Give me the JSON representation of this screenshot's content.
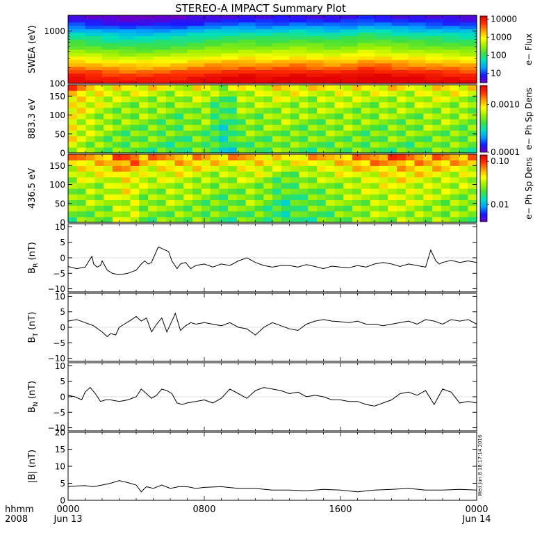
{
  "title": "STEREO-A IMPACT Summary Plot",
  "timestamp": "Wed Jun  8 18:17:14 2016",
  "time_axis": {
    "corner_label_1": "hhmm",
    "corner_label_2": "2008",
    "ticks": [
      {
        "hours": 0,
        "label": "0000",
        "date": "Jun 13"
      },
      {
        "hours": 8,
        "label": "0800",
        "date": ""
      },
      {
        "hours": 16,
        "label": "1600",
        "date": ""
      },
      {
        "hours": 24,
        "label": "0000",
        "date": "Jun 14"
      }
    ],
    "range_hours": [
      0,
      24
    ]
  },
  "colors": {
    "line": "#000000",
    "colormap": [
      "#6a00c8",
      "#1a1aff",
      "#00a0ff",
      "#00e0c0",
      "#40e040",
      "#a0f000",
      "#ffff00",
      "#ffa000",
      "#ff3000",
      "#e00000"
    ]
  },
  "chart_data": [
    {
      "type": "heatmap",
      "name": "swea",
      "ylabel": "SWEA (eV)",
      "yscale": "log",
      "ylim": [
        100,
        2000
      ],
      "yticks": [
        {
          "v": 100,
          "label": "100"
        },
        {
          "v": 1000,
          "label": "1000"
        }
      ],
      "colorbar_label": "e− Flux",
      "colorbar_scale": "log",
      "colorbar_range": [
        3,
        15000
      ],
      "colorbar_ticks": [
        {
          "v": 10,
          "label": "10"
        },
        {
          "v": 100,
          "label": "100"
        },
        {
          "v": 1000,
          "label": "1000"
        },
        {
          "v": 10000,
          "label": "10000"
        }
      ],
      "rows_bottom_to_top_fraction_of_range": [
        1.0,
        0.97,
        0.93,
        0.88,
        0.82,
        0.77,
        0.72,
        0.66,
        0.6,
        0.55,
        0.5,
        0.46,
        0.42,
        0.38,
        0.33,
        0.27,
        0.2,
        0.14,
        0.09,
        0.04
      ],
      "column_modulation": [
        0.0,
        0.02,
        0.04,
        0.05,
        0.05,
        0.04,
        0.03,
        0.01,
        -0.01,
        -0.02,
        -0.03,
        -0.02,
        -0.03,
        -0.04,
        -0.03,
        -0.02,
        -0.03,
        -0.06,
        -0.05,
        -0.03,
        -0.02,
        -0.01,
        0.0,
        0.01
      ]
    },
    {
      "type": "heatmap",
      "name": "pad883",
      "ylabel": "883.3 eV",
      "ylim": [
        0,
        180
      ],
      "yticks": [
        {
          "v": 0,
          "label": "0"
        },
        {
          "v": 50,
          "label": "50"
        },
        {
          "v": 100,
          "label": "100"
        },
        {
          "v": 150,
          "label": "150"
        }
      ],
      "colorbar_label": "e− Ph Sp Dens",
      "colorbar_scale": "log",
      "colorbar_range": [
        0.0001,
        0.0025
      ],
      "colorbar_ticks": [
        {
          "v": 0.0001,
          "label": "0.0001"
        },
        {
          "v": 0.001,
          "label": "0.0010"
        }
      ],
      "angle_profile_bottom_to_top": [
        0.42,
        0.45,
        0.47,
        0.48,
        0.5,
        0.52,
        0.53,
        0.55,
        0.58,
        0.62,
        0.68,
        0.78
      ],
      "column_level": [
        0.78,
        0.7,
        0.65,
        0.6,
        0.55,
        0.52,
        0.5,
        0.5,
        0.52,
        0.5,
        0.48,
        0.46,
        0.44,
        0.48,
        0.52,
        0.5,
        0.38,
        0.3,
        0.35,
        0.5,
        0.52,
        0.5,
        0.52,
        0.55,
        0.56,
        0.53,
        0.52,
        0.5,
        0.52,
        0.54,
        0.55,
        0.55,
        0.52,
        0.5,
        0.5,
        0.52,
        0.53,
        0.52,
        0.5,
        0.52,
        0.55,
        0.55,
        0.56,
        0.54,
        0.52,
        0.5
      ]
    },
    {
      "type": "heatmap",
      "name": "pad436",
      "ylabel": "436.5 eV",
      "ylim": [
        0,
        180
      ],
      "yticks": [
        {
          "v": 0,
          "label": "0"
        },
        {
          "v": 50,
          "label": "50"
        },
        {
          "v": 100,
          "label": "100"
        },
        {
          "v": 150,
          "label": "150"
        }
      ],
      "colorbar_label": "e− Ph Sp Dens",
      "colorbar_scale": "log",
      "colorbar_range": [
        0.004,
        0.14
      ],
      "colorbar_ticks": [
        {
          "v": 0.01,
          "label": "0.01"
        },
        {
          "v": 0.1,
          "label": "0.10"
        }
      ],
      "angle_profile_bottom_to_top": [
        0.4,
        0.42,
        0.44,
        0.46,
        0.48,
        0.5,
        0.52,
        0.56,
        0.62,
        0.7,
        0.8,
        0.9
      ],
      "column_level": [
        0.55,
        0.6,
        0.62,
        0.6,
        0.62,
        0.7,
        0.75,
        0.72,
        0.6,
        0.58,
        0.6,
        0.62,
        0.62,
        0.6,
        0.58,
        0.55,
        0.52,
        0.5,
        0.52,
        0.55,
        0.58,
        0.55,
        0.5,
        0.42,
        0.38,
        0.42,
        0.48,
        0.5,
        0.52,
        0.55,
        0.58,
        0.6,
        0.62,
        0.64,
        0.66,
        0.68,
        0.7,
        0.72,
        0.7,
        0.68,
        0.66,
        0.64,
        0.62,
        0.6,
        0.6,
        0.58
      ]
    },
    {
      "type": "line",
      "name": "br",
      "ylabel_main": "B",
      "ylabel_sub": "R",
      "ylabel_unit": " (nT)",
      "ylim": [
        -11,
        11
      ],
      "yticks": [
        {
          "v": -10,
          "label": "−10"
        },
        {
          "v": -5,
          "label": "−5"
        },
        {
          "v": 0,
          "label": "0"
        },
        {
          "v": 5,
          "label": "5"
        },
        {
          "v": 10,
          "label": "10"
        }
      ],
      "x": [
        0,
        0.5,
        1,
        1.4,
        1.5,
        1.7,
        1.9,
        2.0,
        2.3,
        2.6,
        3.0,
        3.5,
        4.0,
        4.3,
        4.5,
        4.7,
        4.9,
        5.1,
        5.3,
        5.5,
        5.9,
        6.1,
        6.4,
        6.6,
        6.9,
        7.2,
        7.5,
        8,
        8.5,
        9,
        9.5,
        10,
        10.5,
        11,
        11.5,
        12,
        12.5,
        13,
        13.5,
        14,
        14.5,
        15,
        15.5,
        16,
        16.5,
        17,
        17.5,
        18,
        18.5,
        19,
        19.5,
        20,
        20.5,
        21,
        21.3,
        21.6,
        21.8,
        22,
        22.5,
        23,
        23.5,
        24
      ],
      "y": [
        -2.8,
        -3.5,
        -3.0,
        0.5,
        -2.0,
        -3.0,
        -2.5,
        -1.0,
        -4.0,
        -5.0,
        -5.5,
        -5.0,
        -4.0,
        -2.0,
        -1.0,
        -2.0,
        -1.5,
        1.0,
        3.5,
        3.0,
        2.0,
        -1.0,
        -3.5,
        -2.0,
        -1.5,
        -3.5,
        -2.5,
        -2.0,
        -3.0,
        -2.0,
        -2.5,
        -1.0,
        0.0,
        -1.5,
        -2.5,
        -3.0,
        -2.5,
        -2.5,
        -3.0,
        -2.2,
        -2.8,
        -3.5,
        -2.7,
        -3.0,
        -3.2,
        -2.5,
        -3.0,
        -2.0,
        -1.5,
        -2.0,
        -2.8,
        -2.0,
        -2.5,
        -3.0,
        2.5,
        -1.0,
        -2.0,
        -1.5,
        -0.8,
        -1.5,
        -1.0,
        -1.5
      ]
    },
    {
      "type": "line",
      "name": "bt",
      "ylabel_main": "B",
      "ylabel_sub": "T",
      "ylabel_unit": " (nT)",
      "ylim": [
        -11,
        11
      ],
      "yticks": [
        {
          "v": -10,
          "label": "−10"
        },
        {
          "v": -5,
          "label": "−5"
        },
        {
          "v": 0,
          "label": "0"
        },
        {
          "v": 5,
          "label": "5"
        },
        {
          "v": 10,
          "label": "10"
        }
      ],
      "x": [
        0,
        0.5,
        1,
        1.5,
        2.0,
        2.3,
        2.5,
        2.8,
        3.0,
        3.3,
        3.6,
        4.0,
        4.3,
        4.6,
        4.9,
        5.2,
        5.5,
        5.8,
        6.1,
        6.3,
        6.6,
        6.9,
        7.2,
        7.5,
        8,
        8.5,
        9,
        9.5,
        10,
        10.5,
        11,
        11.5,
        12,
        12.5,
        13,
        13.5,
        14,
        14.5,
        15,
        15.5,
        16,
        16.5,
        17,
        17.5,
        18,
        18.5,
        19,
        19.5,
        20,
        20.5,
        21,
        21.5,
        22,
        22.5,
        23,
        23.5,
        24
      ],
      "y": [
        2.0,
        2.5,
        1.5,
        0.5,
        -1.5,
        -3.0,
        -2.0,
        -2.5,
        0.0,
        1.0,
        2.0,
        3.5,
        2.0,
        3.0,
        -1.5,
        1.0,
        3.0,
        -1.5,
        2.0,
        4.5,
        -1.0,
        0.5,
        1.5,
        1.0,
        1.5,
        1.0,
        0.5,
        1.5,
        0.0,
        -0.5,
        -2.5,
        0.0,
        1.5,
        0.5,
        -0.5,
        -1.0,
        1.0,
        2.0,
        2.5,
        2.0,
        1.8,
        1.5,
        2.0,
        1.0,
        1.0,
        0.5,
        1.0,
        1.5,
        2.0,
        1.0,
        2.5,
        2.0,
        1.0,
        2.5,
        2.0,
        2.5,
        1.0
      ]
    },
    {
      "type": "line",
      "name": "bn",
      "ylabel_main": "B",
      "ylabel_sub": "N",
      "ylabel_unit": " (nT)",
      "ylim": [
        -11,
        11
      ],
      "yticks": [
        {
          "v": -10,
          "label": "−10"
        },
        {
          "v": -5,
          "label": "−5"
        },
        {
          "v": 0,
          "label": "0"
        },
        {
          "v": 5,
          "label": "5"
        },
        {
          "v": 10,
          "label": "10"
        }
      ],
      "x": [
        0,
        0.4,
        0.8,
        1.0,
        1.3,
        1.6,
        1.9,
        2.2,
        2.5,
        3.0,
        3.5,
        4.0,
        4.3,
        4.6,
        4.9,
        5.2,
        5.5,
        5.8,
        6.1,
        6.4,
        6.7,
        7.0,
        7.5,
        8,
        8.5,
        9,
        9.5,
        10,
        10.5,
        11,
        11.5,
        12,
        12.5,
        13,
        13.5,
        14,
        14.5,
        15,
        15.5,
        16,
        16.5,
        17,
        17.5,
        18,
        18.5,
        19,
        19.5,
        20,
        20.5,
        21,
        21.5,
        22,
        22.5,
        23,
        23.5,
        24
      ],
      "y": [
        0.5,
        0.0,
        -1.0,
        1.5,
        3.0,
        1.0,
        -1.5,
        -1.0,
        -1.0,
        -1.5,
        -1.0,
        0.0,
        2.5,
        1.0,
        -0.5,
        0.5,
        2.5,
        2.0,
        1.0,
        -2.0,
        -2.5,
        -2.0,
        -1.5,
        -1.0,
        -2.0,
        -0.5,
        2.5,
        1.0,
        -0.5,
        2.0,
        3.0,
        2.5,
        2.0,
        1.0,
        1.5,
        0.0,
        0.5,
        0.0,
        -1.0,
        -1.0,
        -1.5,
        -1.5,
        -2.5,
        -3.0,
        -2.0,
        -1.0,
        1.0,
        1.5,
        0.5,
        2.0,
        -2.5,
        2.5,
        1.5,
        -2.0,
        -1.5,
        -2.0
      ]
    },
    {
      "type": "line",
      "name": "bmag",
      "ylabel_main": "|B|",
      "ylabel_sub": "",
      "ylabel_unit": " (nT)",
      "ylim": [
        0,
        20
      ],
      "yticks": [
        {
          "v": 0,
          "label": "0"
        },
        {
          "v": 5,
          "label": "5"
        },
        {
          "v": 10,
          "label": "10"
        },
        {
          "v": 15,
          "label": "15"
        },
        {
          "v": 20,
          "label": "20"
        }
      ],
      "x": [
        0,
        0.5,
        1,
        1.5,
        2,
        2.5,
        3.0,
        3.5,
        4.0,
        4.3,
        4.6,
        5.0,
        5.5,
        6.0,
        6.5,
        7,
        7.5,
        8,
        9,
        10,
        11,
        12,
        13,
        14,
        15,
        16,
        17,
        18,
        19,
        20,
        21,
        22,
        23,
        24
      ],
      "y": [
        4.0,
        4.2,
        4.3,
        4.0,
        4.5,
        5.0,
        5.8,
        5.2,
        4.5,
        2.5,
        4.0,
        3.5,
        4.5,
        3.5,
        4.0,
        4.0,
        3.5,
        3.8,
        4.0,
        3.5,
        3.5,
        3.0,
        3.0,
        2.8,
        3.2,
        3.0,
        2.5,
        3.0,
        3.2,
        3.5,
        3.0,
        3.0,
        3.2,
        3.0
      ]
    }
  ]
}
